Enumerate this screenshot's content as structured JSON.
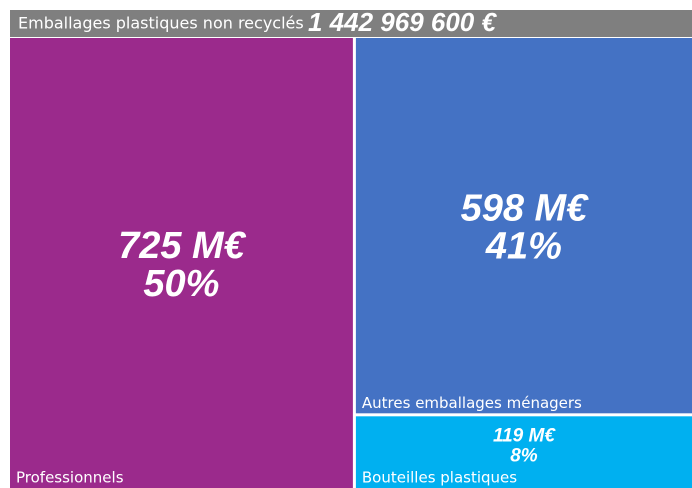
{
  "chart_data": {
    "type": "treemap",
    "title": "Emballages plastiques non recyclés",
    "total_label": "1 442 969 600  €",
    "categories": [
      "Professionnels",
      "Autres emballages ménagers",
      "Bouteilles plastiques"
    ],
    "values": [
      725,
      598,
      119
    ],
    "value_labels": [
      "725 M€",
      "598 M€",
      "119 M€"
    ],
    "percentages": [
      50,
      41,
      8
    ],
    "percentage_labels": [
      "50%",
      "41%",
      "8%"
    ],
    "colors": [
      "#9b2a8c",
      "#4472c4",
      "#00b0f0"
    ]
  }
}
